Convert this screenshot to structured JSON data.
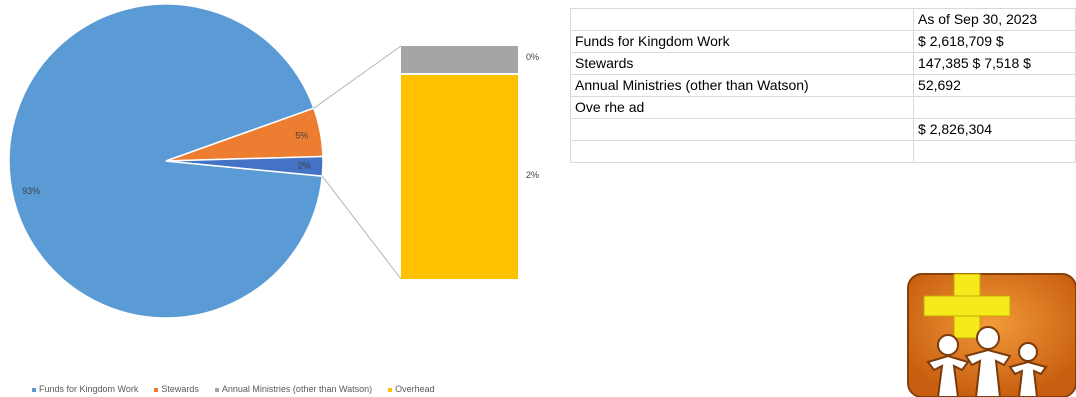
{
  "chart_data": {
    "type": "pie",
    "subtype": "bar-of-pie",
    "slices": [
      {
        "name": "Funds for Kingdom Work",
        "value": 93,
        "label": "93%",
        "color": "#5b9bd5"
      },
      {
        "name": "Stewards",
        "value": 5,
        "label": "5%",
        "color": "#ed7d31"
      },
      {
        "name": "Annual Ministries (other than Watson)",
        "value": 2,
        "label": "2%",
        "color": "#4472c4"
      }
    ],
    "secondary_bar": [
      {
        "name": "Annual Ministries (other than Watson)",
        "value": 0,
        "label": "0%",
        "color": "#a5a5a5"
      },
      {
        "name": "Overhead",
        "value": 2,
        "label": "2%",
        "color": "#ffc000"
      }
    ],
    "legend": [
      {
        "name": "Funds for Kingdom Work",
        "color": "#5b9bd5"
      },
      {
        "name": "Stewards",
        "color": "#ed7d31"
      },
      {
        "name": "Annual Ministries (other than Watson)",
        "color": "#a5a5a5"
      },
      {
        "name": "Overhead",
        "color": "#ffc000"
      }
    ],
    "legend_position": "bottom"
  },
  "table": {
    "header": [
      "",
      "As of Sep 30, 2023"
    ],
    "rows": [
      [
        "Funds for Kingdom Work",
        "$     2,618,709    $"
      ],
      [
        "Stewards",
        "147,385  $  7,518  $"
      ],
      [
        "Annual Ministries (other than Watson)",
        "52,692"
      ],
      [
        "Ove rhe ad",
        ""
      ],
      [
        "",
        "$ 2,826,304"
      ],
      [
        "",
        ""
      ]
    ]
  },
  "logo": {
    "icon": "cross-family-logo-icon",
    "colors": {
      "background": "#e2761b",
      "cross": "#f5ea1c",
      "figures": "#ffffff"
    }
  }
}
